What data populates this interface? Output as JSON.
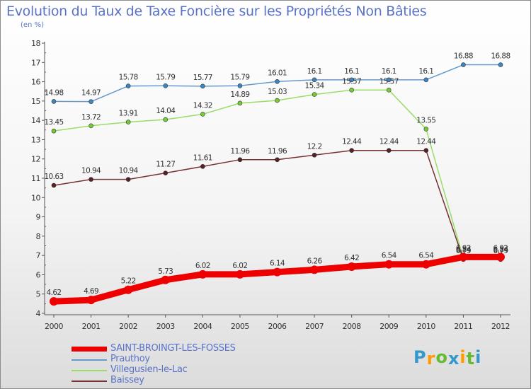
{
  "chart_data": {
    "type": "line",
    "title": "Evolution du Taux de Taxe Foncière sur les Propriétés Non Bâties",
    "subtitle": "(en %)",
    "xlabel": "",
    "ylabel": "",
    "ylim": [
      4,
      18
    ],
    "yticks": [
      4,
      5,
      6,
      7,
      8,
      9,
      10,
      11,
      12,
      13,
      14,
      15,
      16,
      17,
      18
    ],
    "grid": false,
    "legend_position": "bottom-left",
    "categories": [
      "2000",
      "2001",
      "2002",
      "2003",
      "2004",
      "2005",
      "2006",
      "2007",
      "2008",
      "2009",
      "2010",
      "2011",
      "2012"
    ],
    "series": [
      {
        "name": "Prauthoy",
        "color": "#6699cc",
        "marker_color": "#3d86c4",
        "values": [
          14.98,
          14.97,
          15.78,
          15.79,
          15.77,
          15.79,
          16.01,
          16.1,
          16.1,
          16.1,
          16.1,
          16.88,
          16.88
        ],
        "labels": [
          "14.98",
          "14.97",
          "15.78",
          "15.79",
          "15.77",
          "15.79",
          "16.01",
          "16.1",
          "16.1",
          "16.1",
          "16.1",
          "16.88",
          "16.88"
        ]
      },
      {
        "name": "Villegusien-le-Lac",
        "color": "#99dd66",
        "marker_color": "#77cc33",
        "values": [
          13.45,
          13.72,
          13.91,
          14.04,
          14.32,
          14.89,
          15.03,
          15.34,
          15.57,
          15.57,
          13.55,
          6.84,
          6.84
        ],
        "labels": [
          "13.45",
          "13.72",
          "13.91",
          "14.04",
          "14.32",
          "14.89",
          "15.03",
          "15.34",
          "15.57",
          "15.57",
          "13.55",
          "6.84",
          "6.84"
        ]
      },
      {
        "name": "Baissey",
        "color": "#773333",
        "marker_color": "#552222",
        "values": [
          10.63,
          10.94,
          10.94,
          11.27,
          11.61,
          11.96,
          11.96,
          12.2,
          12.44,
          12.44,
          12.44,
          6.79,
          6.79
        ],
        "labels": [
          "10.63",
          "10.94",
          "10.94",
          "11.27",
          "11.61",
          "11.96",
          "11.96",
          "12.2",
          "12.44",
          "12.44",
          "12.44",
          "6.79",
          "6.79"
        ]
      },
      {
        "name": "SAINT-BROINGT-LES-FOSSES",
        "color": "#ee0000",
        "marker_color": "#ee0000",
        "values": [
          4.62,
          4.69,
          5.22,
          5.73,
          6.02,
          6.02,
          6.14,
          6.26,
          6.42,
          6.54,
          6.54,
          6.92,
          6.92
        ],
        "labels": [
          "4.62",
          "4.69",
          "5.22",
          "5.73",
          "6.02",
          "6.02",
          "6.14",
          "6.26",
          "6.42",
          "6.54",
          "6.54",
          "6.92",
          "6.92"
        ]
      }
    ]
  },
  "legend": {
    "items": [
      {
        "label": "SAINT-BROINGT-LES-FOSSES",
        "color": "#ee0000"
      },
      {
        "label": "Prauthoy",
        "color": "#6699cc"
      },
      {
        "label": "Villegusien-le-Lac",
        "color": "#99dd66"
      },
      {
        "label": "Baissey",
        "color": "#773333"
      }
    ]
  },
  "brand": {
    "letters": [
      "P",
      "r",
      "o",
      "x",
      "i",
      "t",
      "i"
    ],
    "colors": [
      "#3399cc",
      "#ff9900",
      "#66bb33",
      "#3399cc",
      "#ff9900",
      "#66bb33",
      "#3399cc"
    ]
  }
}
